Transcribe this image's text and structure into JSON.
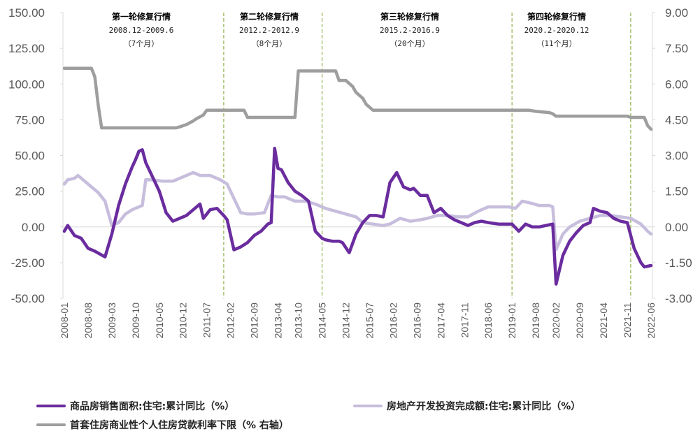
{
  "chart_data": {
    "type": "line",
    "title": "",
    "left_axis": {
      "ticks": [
        "150.00",
        "125.00",
        "100.00",
        "75.00",
        "50.00",
        "25.00",
        "0.00",
        "-25.00",
        "-50.00"
      ],
      "range": [
        -50,
        150
      ]
    },
    "right_axis": {
      "ticks": [
        "9.00",
        "7.50",
        "6.00",
        "4.50",
        "3.00",
        "1.50",
        "0.00",
        "-1.50",
        "-3.00"
      ],
      "range": [
        -3,
        9
      ],
      "label": "右轴"
    },
    "x_ticks": [
      "2008-01",
      "2008-08",
      "2009-03",
      "2009-10",
      "2010-05",
      "2010-12",
      "2011-07",
      "2012-02",
      "2012-09",
      "2013-04",
      "2013-10",
      "2014-05",
      "2014-12",
      "2015-07",
      "2016-02",
      "2016-09",
      "2017-04",
      "2017-11",
      "2018-06",
      "2019-01",
      "2019-08",
      "2020-02",
      "2020-09",
      "2021-04",
      "2021-11",
      "2022-06"
    ],
    "grid": false,
    "legend_position": "bottom",
    "annotations": [
      {
        "title": "第一轮修复行情",
        "period": "2008.12-2009.6",
        "duration": "（7个月）"
      },
      {
        "title": "第二轮修复行情",
        "period": "2012.2-2012.9",
        "duration": "（8个月）"
      },
      {
        "title": "第三轮修复行情",
        "period": "2015.2-2016.9",
        "duration": "（20个月）"
      },
      {
        "title": "第四轮修复行情",
        "period": "2020.2-2020.12",
        "duration": "（11个月）"
      }
    ],
    "vlines": [
      "2011-12",
      "2014-05",
      "2019-01",
      "2021-12"
    ],
    "series": [
      {
        "name": "商品房销售面积:住宅:累计同比（%）",
        "axis": "left",
        "color": "#6a2c9e",
        "points": [
          [
            "2008-01",
            -3
          ],
          [
            "2008-02",
            1
          ],
          [
            "2008-04",
            -6
          ],
          [
            "2008-06",
            -8
          ],
          [
            "2008-08",
            -15
          ],
          [
            "2008-10",
            -17
          ],
          [
            "2009-01",
            -21
          ],
          [
            "2009-03",
            -5
          ],
          [
            "2009-05",
            15
          ],
          [
            "2009-07",
            30
          ],
          [
            "2009-09",
            42
          ],
          [
            "2009-10",
            47
          ],
          [
            "2009-11",
            53
          ],
          [
            "2009-12",
            54
          ],
          [
            "2010-01",
            45
          ],
          [
            "2010-03",
            35
          ],
          [
            "2010-05",
            25
          ],
          [
            "2010-07",
            10
          ],
          [
            "2010-09",
            4
          ],
          [
            "2010-11",
            6
          ],
          [
            "2011-01",
            8
          ],
          [
            "2011-03",
            12
          ],
          [
            "2011-05",
            16
          ],
          [
            "2011-06",
            6
          ],
          [
            "2011-08",
            12
          ],
          [
            "2011-10",
            13
          ],
          [
            "2011-12",
            8
          ],
          [
            "2012-01",
            5
          ],
          [
            "2012-03",
            -16
          ],
          [
            "2012-05",
            -14
          ],
          [
            "2012-07",
            -11
          ],
          [
            "2012-09",
            -6
          ],
          [
            "2012-11",
            -3
          ],
          [
            "2013-01",
            2
          ],
          [
            "2013-02",
            3
          ],
          [
            "2013-03",
            55
          ],
          [
            "2013-04",
            41
          ],
          [
            "2013-05",
            40
          ],
          [
            "2013-07",
            31
          ],
          [
            "2013-09",
            25
          ],
          [
            "2013-11",
            22
          ],
          [
            "2014-01",
            18
          ],
          [
            "2014-03",
            -3
          ],
          [
            "2014-05",
            -8
          ],
          [
            "2014-06",
            -9
          ],
          [
            "2014-08",
            -10
          ],
          [
            "2014-10",
            -10
          ],
          [
            "2014-11",
            -11
          ],
          [
            "2015-01",
            -18
          ],
          [
            "2015-03",
            -5
          ],
          [
            "2015-05",
            3
          ],
          [
            "2015-07",
            8
          ],
          [
            "2015-09",
            8
          ],
          [
            "2015-11",
            7
          ],
          [
            "2016-01",
            31
          ],
          [
            "2016-03",
            38
          ],
          [
            "2016-05",
            28
          ],
          [
            "2016-07",
            26
          ],
          [
            "2016-08",
            27
          ],
          [
            "2016-10",
            22
          ],
          [
            "2016-12",
            22
          ],
          [
            "2017-02",
            10
          ],
          [
            "2017-04",
            13
          ],
          [
            "2017-06",
            8
          ],
          [
            "2017-08",
            5
          ],
          [
            "2017-10",
            3
          ],
          [
            "2017-12",
            1
          ],
          [
            "2018-02",
            3
          ],
          [
            "2018-04",
            4
          ],
          [
            "2018-06",
            3
          ],
          [
            "2018-09",
            2
          ],
          [
            "2019-01",
            2
          ],
          [
            "2019-03",
            -3
          ],
          [
            "2019-05",
            2
          ],
          [
            "2019-07",
            0
          ],
          [
            "2019-09",
            0
          ],
          [
            "2019-11",
            1
          ],
          [
            "2020-01",
            2
          ],
          [
            "2020-02",
            -40
          ],
          [
            "2020-04",
            -20
          ],
          [
            "2020-06",
            -10
          ],
          [
            "2020-08",
            -4
          ],
          [
            "2020-10",
            1
          ],
          [
            "2020-12",
            3
          ],
          [
            "2021-01",
            13
          ],
          [
            "2021-03",
            11
          ],
          [
            "2021-05",
            10
          ],
          [
            "2021-07",
            6
          ],
          [
            "2021-09",
            4
          ],
          [
            "2021-11",
            3
          ],
          [
            "2022-01",
            -15
          ],
          [
            "2022-03",
            -25
          ],
          [
            "2022-04",
            -28
          ],
          [
            "2022-06",
            -27
          ]
        ]
      },
      {
        "name": "房地产开发投资完成额:住宅:累计同比（%）",
        "axis": "left",
        "color": "#c7bedd",
        "points": [
          [
            "2008-01",
            30
          ],
          [
            "2008-02",
            33
          ],
          [
            "2008-04",
            34
          ],
          [
            "2008-05",
            36
          ],
          [
            "2008-07",
            32
          ],
          [
            "2008-09",
            28
          ],
          [
            "2008-11",
            24
          ],
          [
            "2009-01",
            18
          ],
          [
            "2009-03",
            1
          ],
          [
            "2009-05",
            3
          ],
          [
            "2009-07",
            9
          ],
          [
            "2009-09",
            12
          ],
          [
            "2009-11",
            14
          ],
          [
            "2009-12",
            15
          ],
          [
            "2010-01",
            33
          ],
          [
            "2010-03",
            33
          ],
          [
            "2010-06",
            32
          ],
          [
            "2010-09",
            32
          ],
          [
            "2010-12",
            35
          ],
          [
            "2011-03",
            38
          ],
          [
            "2011-05",
            36
          ],
          [
            "2011-08",
            36
          ],
          [
            "2011-11",
            33
          ],
          [
            "2012-01",
            30
          ],
          [
            "2012-03",
            20
          ],
          [
            "2012-05",
            10
          ],
          [
            "2012-07",
            9
          ],
          [
            "2012-09",
            9
          ],
          [
            "2012-12",
            10
          ],
          [
            "2013-02",
            22
          ],
          [
            "2013-04",
            21
          ],
          [
            "2013-06",
            21
          ],
          [
            "2013-09",
            18
          ],
          [
            "2013-12",
            18
          ],
          [
            "2014-03",
            16
          ],
          [
            "2014-06",
            13
          ],
          [
            "2014-09",
            11
          ],
          [
            "2014-12",
            9
          ],
          [
            "2015-03",
            7
          ],
          [
            "2015-05",
            3
          ],
          [
            "2015-08",
            2
          ],
          [
            "2015-11",
            1
          ],
          [
            "2016-01",
            2
          ],
          [
            "2016-04",
            6
          ],
          [
            "2016-07",
            4
          ],
          [
            "2016-10",
            5
          ],
          [
            "2016-12",
            6
          ],
          [
            "2017-03",
            8
          ],
          [
            "2017-06",
            8
          ],
          [
            "2017-09",
            7
          ],
          [
            "2017-12",
            7
          ],
          [
            "2018-03",
            11
          ],
          [
            "2018-06",
            14
          ],
          [
            "2018-09",
            14
          ],
          [
            "2018-12",
            14
          ],
          [
            "2019-02",
            13
          ],
          [
            "2019-04",
            18
          ],
          [
            "2019-06",
            17
          ],
          [
            "2019-09",
            15
          ],
          [
            "2019-12",
            15
          ],
          [
            "2020-01",
            14
          ],
          [
            "2020-02",
            -16
          ],
          [
            "2020-04",
            -5
          ],
          [
            "2020-06",
            0
          ],
          [
            "2020-09",
            4
          ],
          [
            "2020-12",
            6
          ],
          [
            "2021-03",
            8
          ],
          [
            "2021-06",
            8
          ],
          [
            "2021-09",
            7
          ],
          [
            "2021-12",
            6
          ],
          [
            "2022-03",
            2
          ],
          [
            "2022-05",
            -3
          ],
          [
            "2022-06",
            -5
          ]
        ]
      },
      {
        "name": "首套住房商业性个人住房贷款利率下限（%  右轴）",
        "axis": "right",
        "color": "#9e9e9e",
        "points": [
          [
            "2008-01",
            6.66
          ],
          [
            "2008-09",
            6.66
          ],
          [
            "2008-10",
            6.3
          ],
          [
            "2008-11",
            5.1
          ],
          [
            "2008-12",
            4.16
          ],
          [
            "2009-01",
            4.16
          ],
          [
            "2010-10",
            4.16
          ],
          [
            "2010-11",
            4.2
          ],
          [
            "2011-01",
            4.3
          ],
          [
            "2011-03",
            4.45
          ],
          [
            "2011-04",
            4.55
          ],
          [
            "2011-06",
            4.7
          ],
          [
            "2011-07",
            4.9
          ],
          [
            "2011-08",
            4.9
          ],
          [
            "2012-06",
            4.9
          ],
          [
            "2012-07",
            4.6
          ],
          [
            "2013-09",
            4.6
          ],
          [
            "2013-10",
            6.55
          ],
          [
            "2014-09",
            6.55
          ],
          [
            "2014-10",
            6.15
          ],
          [
            "2014-12",
            6.15
          ],
          [
            "2015-02",
            5.9
          ],
          [
            "2015-03",
            5.65
          ],
          [
            "2015-05",
            5.4
          ],
          [
            "2015-06",
            5.15
          ],
          [
            "2015-08",
            4.9
          ],
          [
            "2019-06",
            4.9
          ],
          [
            "2019-08",
            4.85
          ],
          [
            "2019-12",
            4.8
          ],
          [
            "2020-01",
            4.75
          ],
          [
            "2020-02",
            4.65
          ],
          [
            "2021-11",
            4.65
          ],
          [
            "2021-12",
            4.6
          ],
          [
            "2022-04",
            4.6
          ],
          [
            "2022-05",
            4.25
          ],
          [
            "2022-06",
            4.1
          ]
        ]
      }
    ]
  },
  "legend": {
    "items": [
      {
        "label": "商品房销售面积:住宅:累计同比（%）",
        "color": "#6a2c9e"
      },
      {
        "label": "房地产开发投资完成额:住宅:累计同比（%）",
        "color": "#c7bedd"
      },
      {
        "label": "首套住房商业性个人住房贷款利率下限（%  右轴）",
        "color": "#9e9e9e"
      }
    ]
  }
}
